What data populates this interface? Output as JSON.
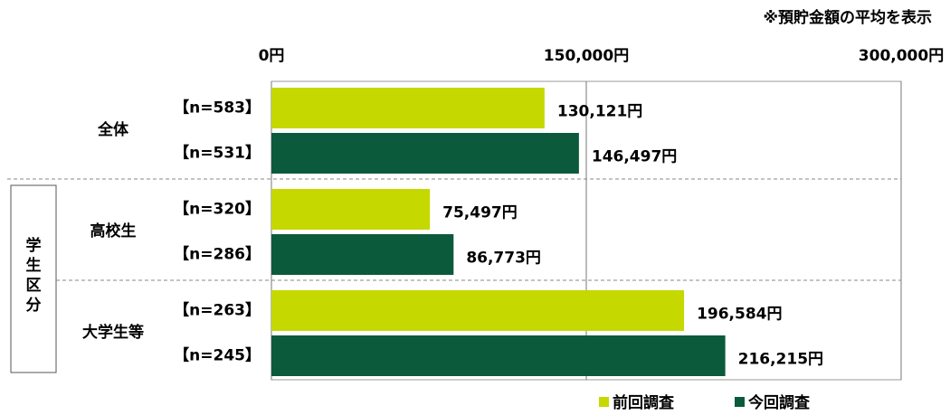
{
  "chart_data": {
    "type": "bar",
    "orientation": "horizontal",
    "note": "※預貯金額の平均を表示",
    "categories": [
      "全体",
      "高校生",
      "大学生等"
    ],
    "group_label": "学生区分",
    "series": [
      {
        "name": "前回調査",
        "color": "#c5d800",
        "n_labels": [
          "【n=583】",
          "【n=320】",
          "【n=263】"
        ],
        "values": [
          130121,
          75497,
          196584
        ],
        "value_labels": [
          "130,121円",
          "75,497円",
          "196,584円"
        ]
      },
      {
        "name": "今回調査",
        "color": "#0b5a3b",
        "n_labels": [
          "【n=531】",
          "【n=286】",
          "【n=245】"
        ],
        "values": [
          146497,
          86773,
          216215
        ],
        "value_labels": [
          "146,497円",
          "86,773円",
          "216,215円"
        ]
      }
    ],
    "xlim": [
      0,
      300000
    ],
    "xticks": [
      {
        "value": 0,
        "label": "0円"
      },
      {
        "value": 150000,
        "label": "150,000円"
      },
      {
        "value": 300000,
        "label": "300,000円"
      }
    ],
    "grid": true
  }
}
